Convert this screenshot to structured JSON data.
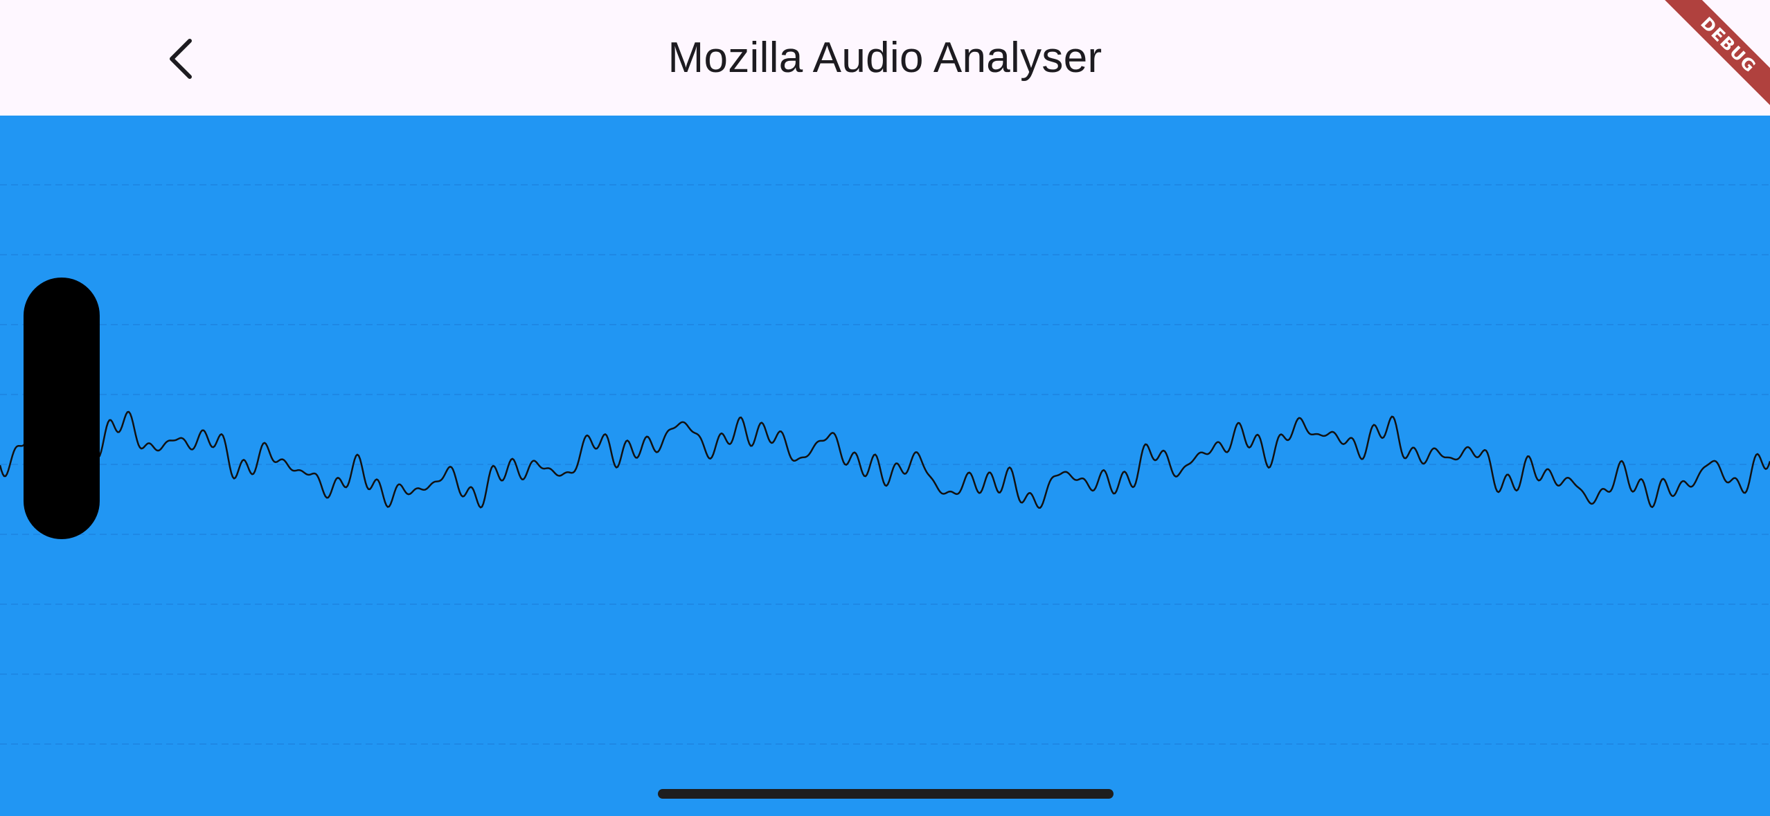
{
  "app_bar": {
    "title": "Mozilla Audio Analyser",
    "back_icon": "chevron-left-icon",
    "background_color": "#fef7ff",
    "title_color": "#1d1b20"
  },
  "debug_banner": {
    "label": "DEBUG",
    "color": "#b0413e"
  },
  "visualizer": {
    "background_color": "#2196f3",
    "waveform_color": "#111111",
    "grid_color": "#1e88e5",
    "gridline_count": 9,
    "scrubber_color": "#000000"
  },
  "home_indicator": {
    "color": "#1e1e1e"
  }
}
